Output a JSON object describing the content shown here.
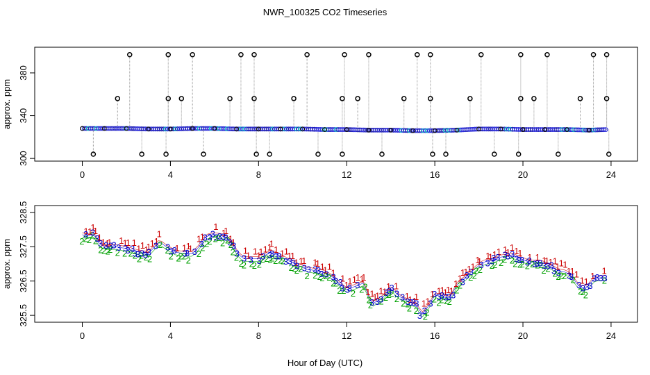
{
  "title": "NWR_100325  CO2 Timeseries",
  "xlabel": "Hour of Day (UTC)",
  "chart_data": [
    {
      "type": "scatter",
      "name": "top-panel",
      "ylabel": "approx. ppm",
      "xlim": [
        -2.16,
        25.2
      ],
      "ylim": [
        297.5,
        404
      ],
      "xticks": [
        0,
        4,
        8,
        12,
        16,
        20,
        24
      ],
      "yticks": [
        300,
        340,
        380
      ],
      "ytick_labels": [
        "300",
        "340",
        "380"
      ],
      "baseline": [
        [
          0,
          328
        ],
        [
          1,
          328
        ],
        [
          2,
          328
        ],
        [
          3,
          327.5
        ],
        [
          4,
          327.5
        ],
        [
          5,
          328
        ],
        [
          6,
          328
        ],
        [
          7,
          327.5
        ],
        [
          8,
          327.5
        ],
        [
          9,
          327.5
        ],
        [
          10,
          327.5
        ],
        [
          11,
          327
        ],
        [
          12,
          327
        ],
        [
          13,
          326.5
        ],
        [
          14,
          326.5
        ],
        [
          15,
          326
        ],
        [
          16,
          326
        ],
        [
          17,
          326.5
        ],
        [
          18,
          327.5
        ],
        [
          19,
          327.5
        ],
        [
          20,
          327
        ],
        [
          21,
          327
        ],
        [
          22,
          327
        ],
        [
          23,
          326.5
        ],
        [
          23.8,
          327
        ]
      ],
      "outliers_high": [
        2.15,
        3.9,
        5.0,
        7.2,
        7.8,
        10.2,
        11.9,
        13.0,
        15.2,
        15.8,
        18.1,
        19.9,
        21.1,
        23.2,
        23.8
      ],
      "high_value": 397,
      "outliers_mid": [
        1.6,
        3.9,
        4.5,
        6.7,
        7.8,
        9.6,
        11.8,
        12.5,
        14.6,
        15.8,
        17.6,
        19.9,
        20.5,
        22.6,
        23.8
      ],
      "mid_value": 356,
      "outliers_low": [
        0.5,
        2.7,
        3.8,
        5.5,
        7.9,
        8.5,
        10.7,
        11.8,
        13.6,
        15.9,
        16.5,
        18.7,
        19.8,
        21.6,
        23.9
      ],
      "low_value": 304
    },
    {
      "type": "scatter",
      "name": "bottom-panel",
      "ylabel": "approx. ppm",
      "xlim": [
        -2.16,
        25.2
      ],
      "ylim": [
        325.3,
        328.7
      ],
      "xticks": [
        0,
        4,
        8,
        12,
        16,
        20,
        24
      ],
      "yticks": [
        325.5,
        326.5,
        327.5,
        328.5
      ],
      "ytick_labels": [
        "325.5",
        "326.5",
        "327.5",
        "328.5"
      ],
      "series_labels": [
        "1",
        "2",
        "3"
      ],
      "series_colors": [
        "#cc0000",
        "#00a000",
        "#0000cc"
      ],
      "curve": [
        [
          0,
          327.85
        ],
        [
          0.25,
          327.8
        ],
        [
          0.5,
          327.9
        ],
        [
          0.75,
          327.6
        ],
        [
          1,
          327.5
        ],
        [
          1.5,
          327.5
        ],
        [
          2,
          327.45
        ],
        [
          2.5,
          327.35
        ],
        [
          3,
          327.3
        ],
        [
          3.5,
          327.65
        ],
        [
          3.8,
          327.5
        ],
        [
          4.2,
          327.35
        ],
        [
          4.6,
          327.3
        ],
        [
          5,
          327.3
        ],
        [
          5.3,
          327.5
        ],
        [
          5.6,
          327.8
        ],
        [
          6,
          327.85
        ],
        [
          6.5,
          327.8
        ],
        [
          6.8,
          327.6
        ],
        [
          7,
          327.35
        ],
        [
          7.3,
          327.15
        ],
        [
          7.6,
          327.15
        ],
        [
          8,
          327.15
        ],
        [
          8.3,
          327.25
        ],
        [
          8.6,
          327.35
        ],
        [
          8.9,
          327.25
        ],
        [
          9.2,
          327.15
        ],
        [
          9.5,
          327.05
        ],
        [
          9.8,
          326.95
        ],
        [
          10.2,
          326.85
        ],
        [
          10.6,
          326.8
        ],
        [
          11,
          326.75
        ],
        [
          11.4,
          326.6
        ],
        [
          11.7,
          326.4
        ],
        [
          12,
          326.25
        ],
        [
          12.4,
          326.35
        ],
        [
          12.8,
          326.45
        ],
        [
          13,
          326.0
        ],
        [
          13.2,
          325.85
        ],
        [
          13.6,
          326.0
        ],
        [
          14,
          326.3
        ],
        [
          14.4,
          326.05
        ],
        [
          14.8,
          325.9
        ],
        [
          15.2,
          325.8
        ],
        [
          15.4,
          325.5
        ],
        [
          15.7,
          325.75
        ],
        [
          16,
          326.1
        ],
        [
          16.3,
          326.05
        ],
        [
          16.7,
          326.0
        ],
        [
          17,
          326.4
        ],
        [
          17.4,
          326.6
        ],
        [
          17.8,
          326.85
        ],
        [
          18.2,
          327.05
        ],
        [
          18.6,
          327.1
        ],
        [
          19,
          327.2
        ],
        [
          19.5,
          327.25
        ],
        [
          19.9,
          327.15
        ],
        [
          20.3,
          327.05
        ],
        [
          20.8,
          327.05
        ],
        [
          21.2,
          326.95
        ],
        [
          21.6,
          326.8
        ],
        [
          22,
          326.75
        ],
        [
          22.3,
          326.55
        ],
        [
          22.6,
          326.3
        ],
        [
          22.9,
          326.3
        ],
        [
          23.2,
          326.55
        ],
        [
          23.5,
          326.6
        ],
        [
          23.8,
          326.6
        ]
      ]
    }
  ]
}
